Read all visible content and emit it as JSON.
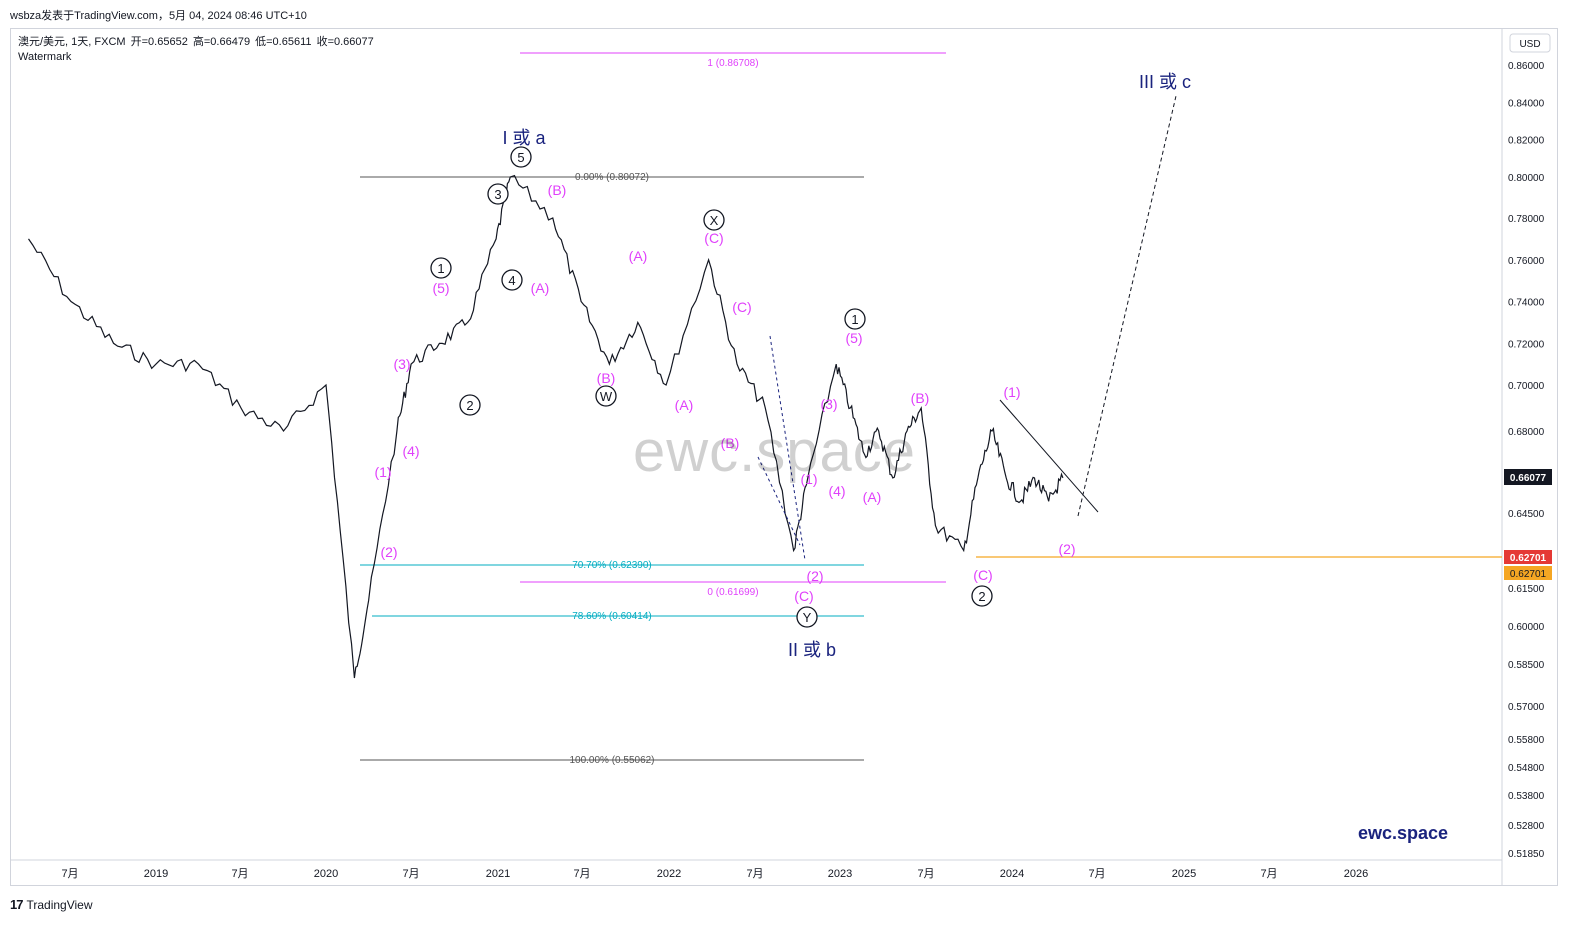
{
  "header": {
    "publisher": "wsbza发表于TradingView.com，5月 04, 2024 08:46 UTC+10"
  },
  "legend": {
    "symbol": "澳元/美元, 1天, FXCM",
    "open_label": "开",
    "open": "=0.65652",
    "high_label": "高",
    "high": "=0.66479",
    "low_label": "低",
    "low": "=0.65611",
    "close_label": "收",
    "close": "=0.66077",
    "indicator": "Watermark"
  },
  "axis": {
    "currency": "USD",
    "current_price": "0.66077",
    "orange_level_a": "0.62701",
    "orange_level_b": "0.62701"
  },
  "colors": {
    "candles": "#131722",
    "magenta": "#e040fb",
    "wave_blue": "#1a237e",
    "fib_cyan": "#00acc1",
    "fib_gray": "#555555",
    "orange": "#f5a623",
    "price_badge": "#131722",
    "red_badge": "#e53935"
  },
  "watermark_text": "ewc.space",
  "brand_text": "ewc.space",
  "footer": {
    "logo": "17",
    "text": "TradingView"
  },
  "chart_data": {
    "type": "line",
    "title": "",
    "xlabel": "",
    "ylabel": "",
    "x": [
      "2018-04",
      "2018-07",
      "2018-10",
      "2019-01",
      "2019-04",
      "2019-07",
      "2019-10",
      "2020-01",
      "2020-03",
      "2020-04",
      "2020-06",
      "2020-07",
      "2020-09",
      "2020-11",
      "2021-01",
      "2021-02",
      "2021-05",
      "2021-07",
      "2021-09",
      "2021-11",
      "2022-01",
      "2022-04",
      "2022-06",
      "2022-08",
      "2022-10",
      "2022-11",
      "2023-01",
      "2023-02",
      "2023-03",
      "2023-04",
      "2023-05",
      "2023-06",
      "2023-07",
      "2023-08",
      "2023-10",
      "2023-11",
      "2023-12",
      "2024-01",
      "2024-02",
      "2024-03",
      "2024-04",
      "2024-05"
    ],
    "series": [
      {
        "values": [
          0.77,
          0.74,
          0.72,
          0.71,
          0.71,
          0.69,
          0.68,
          0.7,
          0.58,
          0.61,
          0.68,
          0.71,
          0.72,
          0.73,
          0.77,
          0.8,
          0.78,
          0.74,
          0.71,
          0.73,
          0.7,
          0.76,
          0.71,
          0.69,
          0.63,
          0.66,
          0.71,
          0.69,
          0.67,
          0.68,
          0.66,
          0.68,
          0.69,
          0.64,
          0.63,
          0.66,
          0.68,
          0.66,
          0.65,
          0.66,
          0.65,
          0.66
        ]
      }
    ],
    "ylim": [
      0.51,
      0.87
    ],
    "price_axis_ticks": [
      "0.86000",
      "0.84000",
      "0.82000",
      "0.80000",
      "0.78000",
      "0.76000",
      "0.74000",
      "0.72000",
      "0.70000",
      "0.68000",
      "0.64500",
      "0.61500",
      "0.60000",
      "0.58500",
      "0.57000",
      "0.55800",
      "0.54800",
      "0.53800",
      "0.52800",
      "0.51850"
    ],
    "time_axis_ticks": [
      "7月",
      "2019",
      "7月",
      "2020",
      "7月",
      "2021",
      "7月",
      "2022",
      "7月",
      "2023",
      "7月",
      "2024",
      "7月",
      "2025",
      "7月",
      "2026"
    ],
    "fib_levels": [
      {
        "label": "0.00% (0.80072)",
        "value": 0.80072
      },
      {
        "label": "70.70% (0.62390)",
        "value": 0.6239
      },
      {
        "label": "78.60% (0.60414)",
        "value": 0.60414
      },
      {
        "label": "100.00% (0.55062)",
        "value": 0.55062
      },
      {
        "label": "1 (0.86708)",
        "value": 0.86708
      },
      {
        "label": "0 (0.61699)",
        "value": 0.61699
      }
    ],
    "wave_titles": [
      "I 或 a",
      "II 或 b",
      "III 或 c"
    ],
    "wave_labels": {
      "circled": [
        "5",
        "3",
        "4",
        "1",
        "2",
        "X",
        "W",
        "Y",
        "1",
        "2"
      ],
      "magenta": [
        "(B)",
        "(A)",
        "(5)",
        "(3)",
        "(4)",
        "(1)",
        "(2)",
        "(A)",
        "(C)",
        "(B)",
        "(C)",
        "(A)",
        "(B)",
        "(5)",
        "(3)",
        "(1)",
        "(4)",
        "(2)",
        "(C)",
        "(A)",
        "(B)",
        "(C)",
        "(1)",
        "(2)"
      ]
    }
  }
}
